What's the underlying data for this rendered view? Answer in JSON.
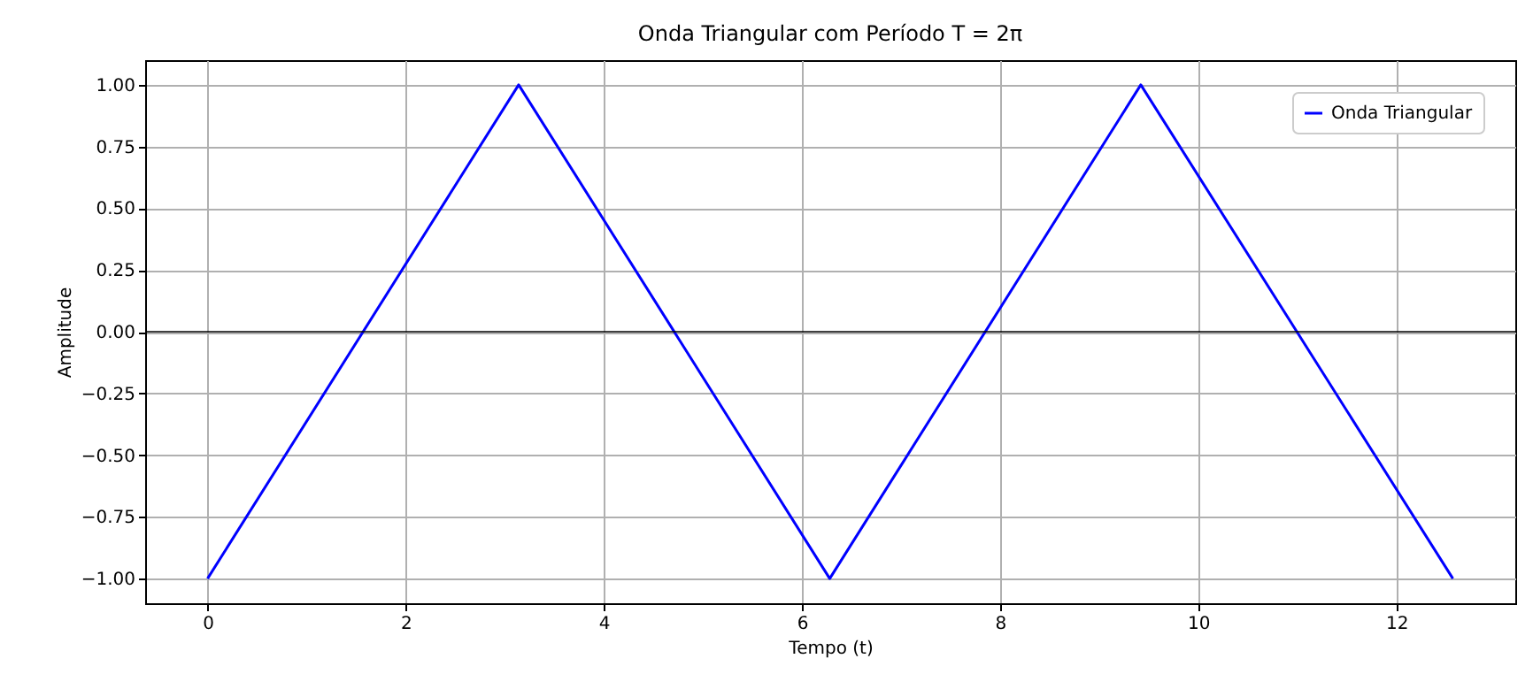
{
  "chart_data": {
    "type": "line",
    "title": "Onda Triangular com Período T = 2π",
    "xlabel": "Tempo (t)",
    "ylabel": "Amplitude",
    "x": [
      0,
      3.14,
      6.28,
      9.42,
      12.57
    ],
    "series": [
      {
        "name": "Onda Triangular",
        "color": "#0000ff",
        "values": [
          -1,
          1,
          -1,
          1,
          -1
        ]
      }
    ],
    "xlim": [
      -0.63,
      13.2
    ],
    "xticks": [
      0,
      2,
      4,
      6,
      8,
      10,
      12
    ],
    "ylim": [
      -1.1,
      1.1
    ],
    "yticks": [
      {
        "value": -1,
        "label": "−1.00"
      },
      {
        "value": -0.75,
        "label": "−0.75"
      },
      {
        "value": -0.5,
        "label": "−0.50"
      },
      {
        "value": -0.25,
        "label": "−0.25"
      },
      {
        "value": 0,
        "label": "0.00"
      },
      {
        "value": 0.25,
        "label": "0.25"
      },
      {
        "value": 0.5,
        "label": "0.50"
      },
      {
        "value": 0.75,
        "label": "0.75"
      },
      {
        "value": 1,
        "label": "1.00"
      }
    ],
    "ref_lines": [
      {
        "axis": "y",
        "value": 0,
        "color": "#000000"
      }
    ],
    "grid": true,
    "legend": "top right",
    "marker": "none",
    "line_style": "solid"
  }
}
